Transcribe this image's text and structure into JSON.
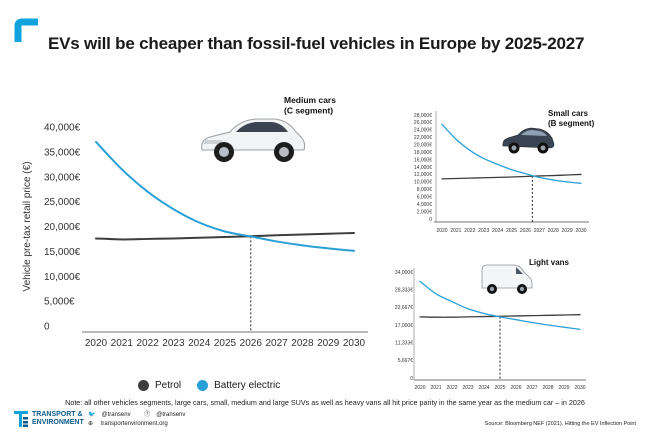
{
  "title": "EVs will be cheaper than fossil-fuel vehicles in Europe by 2025-2027",
  "colors": {
    "petrol": "#3d3d3d",
    "battery_electric": "#2a9fd6",
    "brand": "#12a3dd"
  },
  "legend": {
    "petrol": "Petrol",
    "battery_electric": "Battery electric"
  },
  "note": "Note: all other vehicles segments, large cars, small, medium and large SUVs as well as heavy vans all hit price parity in the same year as the medium car – in 2026",
  "footer": {
    "org_line1": "TRANSPORT &",
    "org_line2": "ENVIRONMENT",
    "twitter": "@transenv",
    "facebook": "@transenv",
    "website": "transportenvironment.org",
    "source": "Source: Bloomberg NEF (2021), Hitting the EV Inflection Point"
  },
  "chart_data": [
    {
      "type": "line",
      "title": "Medium cars\n(C segment)",
      "ylabel": "Vehicle pre-tax retail price (€)",
      "x": [
        2020,
        2021,
        2022,
        2023,
        2024,
        2025,
        2026,
        2027,
        2028,
        2029,
        2030
      ],
      "ylim": [
        0,
        40000
      ],
      "yticks": [
        "0",
        "5,000€",
        "10,000€",
        "15,000€",
        "20,000€",
        "25,000€",
        "30,000€",
        "35,000€",
        "40,000€"
      ],
      "parity_year": 2026,
      "series": [
        {
          "name": "Petrol",
          "values": [
            17600,
            17400,
            17500,
            17600,
            17750,
            17900,
            18050,
            18250,
            18400,
            18550,
            18700
          ]
        },
        {
          "name": "Battery electric",
          "values": [
            37000,
            31500,
            27000,
            23500,
            20800,
            19000,
            18000,
            17000,
            16200,
            15600,
            15100
          ]
        }
      ]
    },
    {
      "type": "line",
      "title": "Small cars\n(B segment)",
      "x": [
        2020,
        2021,
        2022,
        2023,
        2024,
        2025,
        2026,
        2027,
        2028,
        2029,
        2030
      ],
      "ylim": [
        0,
        28000
      ],
      "yticks": [
        "0",
        "2,000€",
        "4,000€",
        "6,000€",
        "8,000€",
        "10,000€",
        "12,000€",
        "14,000€",
        "16,000€",
        "18,000€",
        "20,000€",
        "22,000€",
        "24,000€",
        "26,000€",
        "28,000€"
      ],
      "parity_year": 2026.5,
      "series": [
        {
          "name": "Petrol",
          "values": [
            10800,
            10900,
            11000,
            11100,
            11200,
            11300,
            11450,
            11600,
            11700,
            11850,
            12000
          ]
        },
        {
          "name": "Battery electric",
          "values": [
            25500,
            21500,
            18500,
            16300,
            14700,
            13300,
            12200,
            11200,
            10500,
            10000,
            9600
          ]
        }
      ]
    },
    {
      "type": "line",
      "title": "Light vans",
      "x": [
        2020,
        2021,
        2022,
        2023,
        2024,
        2025,
        2026,
        2027,
        2028,
        2029,
        2030
      ],
      "ylim": [
        0,
        34000
      ],
      "yticks": [
        "0",
        "5,667€",
        "11,333€",
        "17,000€",
        "22,667€",
        "28,333€",
        "34,000€"
      ],
      "parity_year": 2025,
      "series": [
        {
          "name": "Petrol",
          "values": [
            19600,
            19500,
            19500,
            19600,
            19700,
            19800,
            19900,
            20000,
            20100,
            20200,
            20300
          ]
        },
        {
          "name": "Battery electric",
          "values": [
            31000,
            27000,
            24500,
            22200,
            20700,
            19600,
            18700,
            17800,
            17000,
            16300,
            15600
          ]
        }
      ]
    }
  ]
}
